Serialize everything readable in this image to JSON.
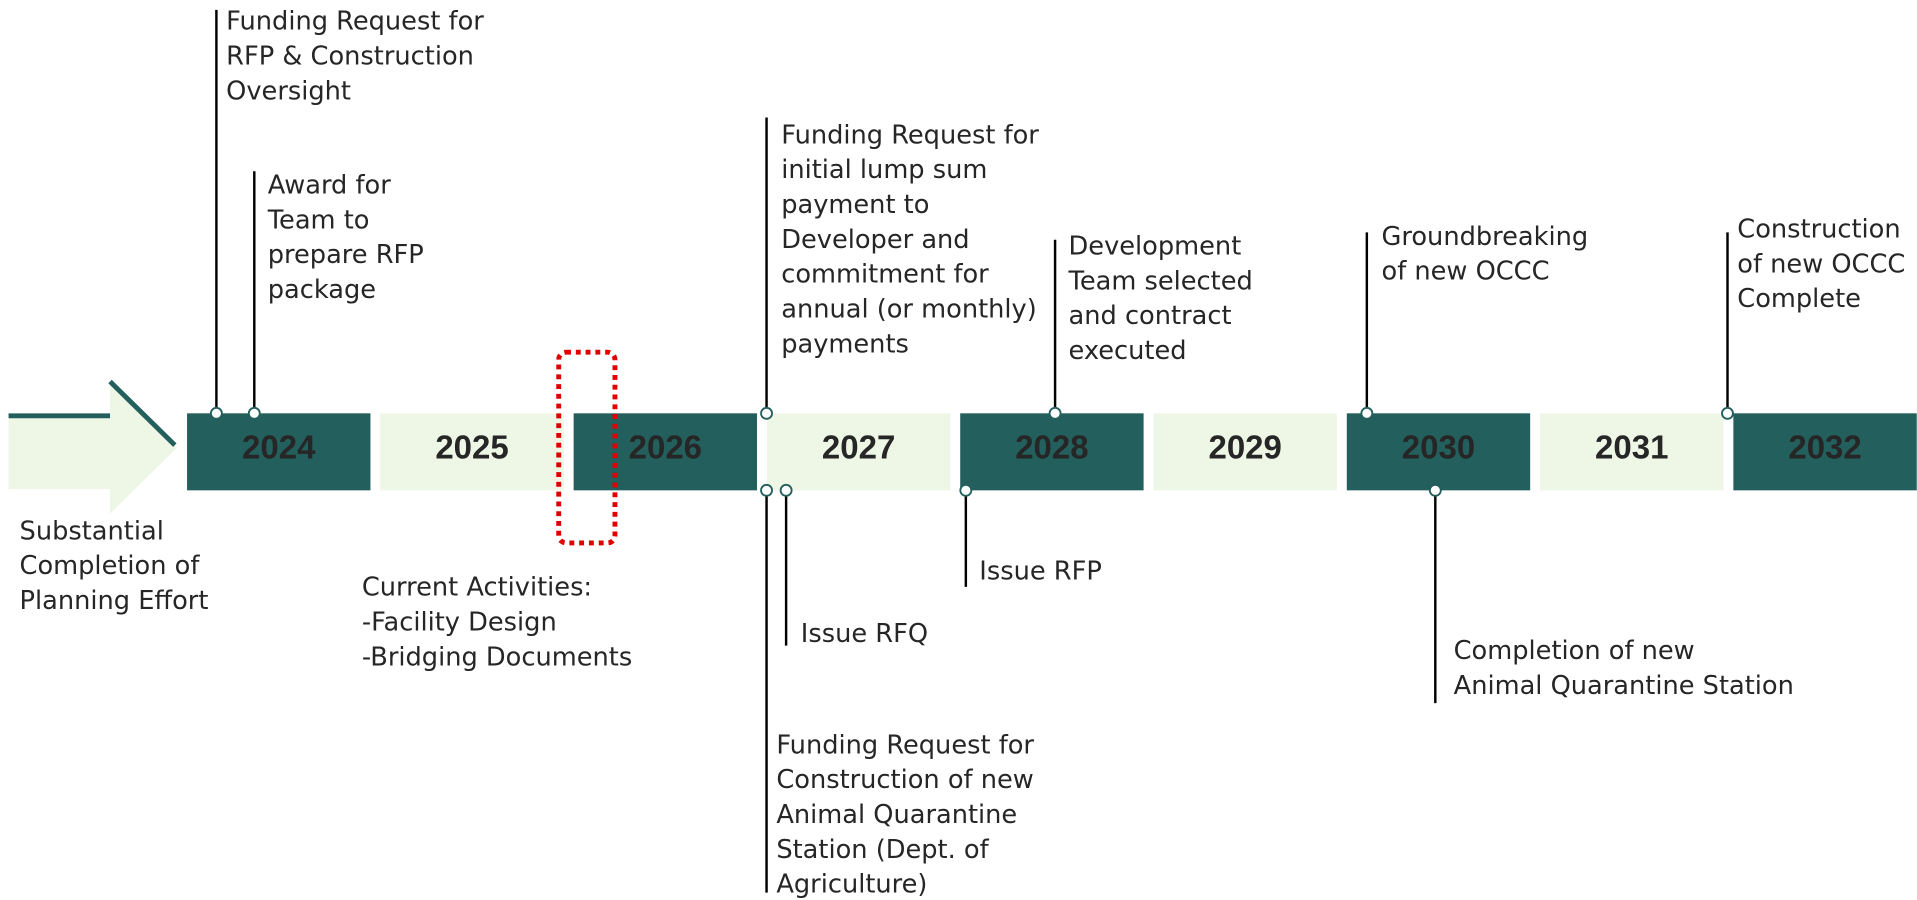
{
  "years": [
    "2024",
    "2025",
    "2026",
    "2027",
    "2028",
    "2029",
    "2030",
    "2031",
    "2032"
  ],
  "start_note": [
    "Substantial",
    "Completion of",
    "Planning Effort"
  ],
  "current_activities": [
    "Current Activities:",
    "-Facility Design",
    "-Bridging Documents"
  ],
  "events_above": [
    [
      "Funding Request for",
      "RFP & Construction",
      "Oversight"
    ],
    [
      "Award for",
      "Team to",
      "prepare RFP",
      "package"
    ],
    [
      "Funding Request for",
      "initial lump sum",
      "payment to",
      "Developer and",
      "commitment for",
      "annual (or monthly)",
      "payments"
    ],
    [
      "Development",
      "Team selected",
      "and contract",
      "executed"
    ],
    [
      "Groundbreaking",
      "of new OCCC"
    ],
    [
      "Construction",
      "of new OCCC",
      "Complete"
    ]
  ],
  "events_below": [
    [
      "Funding Request for",
      "Construction of new",
      "Animal Quarantine",
      "Station (Dept. of",
      "Agriculture)"
    ],
    [
      "Issue RFQ"
    ],
    [
      "Issue RFP"
    ],
    [
      "Completion of new",
      "Animal Quarantine Station"
    ]
  ]
}
